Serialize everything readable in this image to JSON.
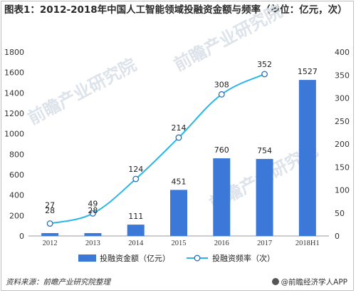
{
  "page": {
    "title": "图表1：2012-2018年中国人工智能领域投融资金额与频率（单位：亿元，次）",
    "source": "资料来源：前瞻产业研究院整理",
    "brand": "@前瞻经济学人APP",
    "watermark": "前瞻产业研究院"
  },
  "chart_data": {
    "type": "bar",
    "categories": [
      "2012",
      "2013",
      "2014",
      "2015",
      "2016",
      "2017",
      "2018H1"
    ],
    "series": [
      {
        "name": "投融资金额（亿元）",
        "type": "bar",
        "axis": "left",
        "values": [
          28,
          28,
          111,
          451,
          760,
          754,
          1527
        ],
        "color": "#3c78d8"
      },
      {
        "name": "投融资频率（次）",
        "type": "line",
        "axis": "right",
        "values": [
          27,
          49,
          124,
          214,
          308,
          352,
          null
        ],
        "color": "#2bb6e8"
      }
    ],
    "y_left": {
      "min": 0,
      "max": 1800,
      "ticks": [
        0,
        200,
        400,
        600,
        800,
        1000,
        1200,
        1400,
        1600,
        1800
      ]
    },
    "y_right": {
      "min": 0,
      "max": 400,
      "ticks": [
        0,
        50,
        100,
        150,
        200,
        250,
        300,
        350,
        400
      ]
    },
    "grid": false,
    "legend": "bottom"
  }
}
